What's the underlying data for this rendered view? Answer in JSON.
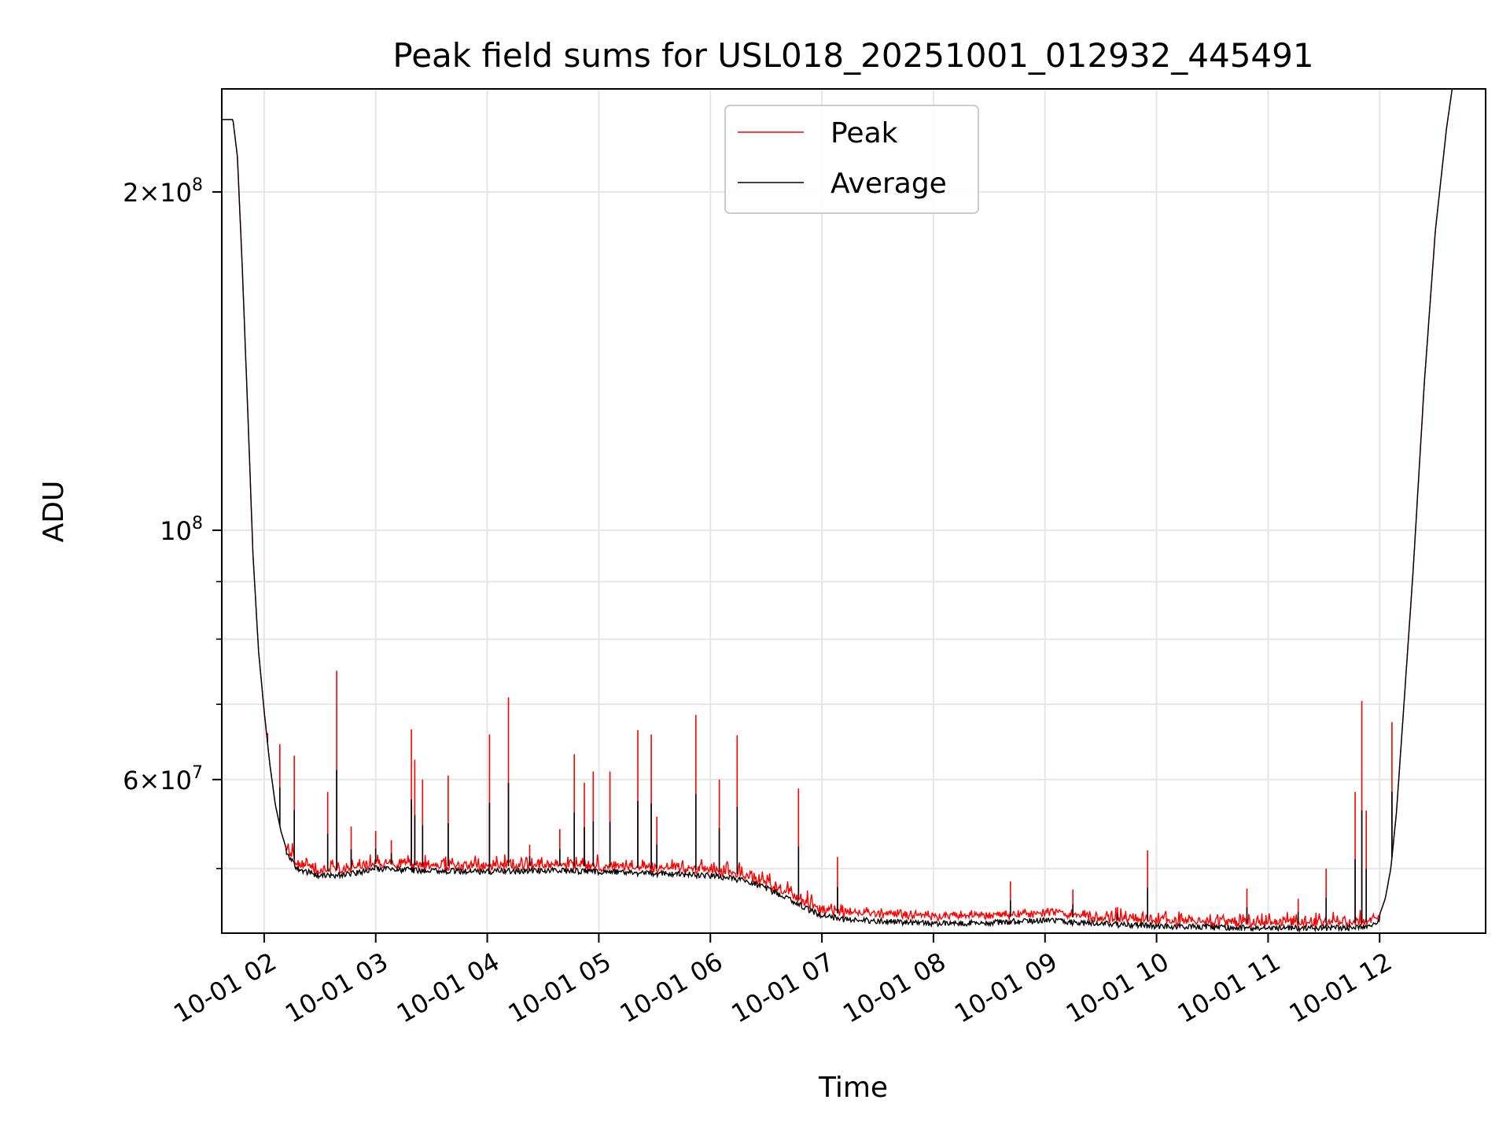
{
  "chart_data": {
    "type": "line",
    "title": "Peak field sums for USL018_20251001_012932_445491",
    "xlabel": "Time",
    "ylabel": "ADU",
    "yscale": "log",
    "ylim": [
      43800000,
      247000000
    ],
    "xlim": [
      1.62,
      12.95
    ],
    "grid": true,
    "legend_position": "top-center",
    "x_ticks": [
      {
        "value": 2,
        "label": "10-01 02"
      },
      {
        "value": 3,
        "label": "10-01 03"
      },
      {
        "value": 4,
        "label": "10-01 04"
      },
      {
        "value": 5,
        "label": "10-01 05"
      },
      {
        "value": 6,
        "label": "10-01 06"
      },
      {
        "value": 7,
        "label": "10-01 07"
      },
      {
        "value": 8,
        "label": "10-01 08"
      },
      {
        "value": 9,
        "label": "10-01 09"
      },
      {
        "value": 10,
        "label": "10-01 10"
      },
      {
        "value": 11,
        "label": "10-01 11"
      },
      {
        "value": 12,
        "label": "10-01 12"
      }
    ],
    "y_major_ticks": [
      {
        "value": 60000000,
        "mant": "6",
        "exp": "7"
      },
      {
        "value": 100000000,
        "mant": "",
        "exp": "8"
      },
      {
        "value": 200000000,
        "mant": "2",
        "exp": "8"
      }
    ],
    "y_minor_ticks": [
      50000000,
      70000000,
      80000000,
      90000000,
      300000000
    ],
    "series": [
      {
        "name": "Peak",
        "color": "#ff0000",
        "width": 1.2
      },
      {
        "name": "Average",
        "color": "#000000",
        "width": 1.2
      }
    ],
    "baseline": [
      [
        1.62,
        232000000
      ],
      [
        1.72,
        232000000
      ],
      [
        1.76,
        215000000
      ],
      [
        1.8,
        175000000
      ],
      [
        1.85,
        130000000
      ],
      [
        1.9,
        95000000
      ],
      [
        1.95,
        78000000
      ],
      [
        2.0,
        69000000
      ],
      [
        2.05,
        62000000
      ],
      [
        2.1,
        57000000
      ],
      [
        2.15,
        54000000
      ],
      [
        2.2,
        52000000
      ],
      [
        2.3,
        50500000
      ],
      [
        2.5,
        49700000
      ],
      [
        2.8,
        50000000
      ],
      [
        3.0,
        50500000
      ],
      [
        3.4,
        50300000
      ],
      [
        4.0,
        50200000
      ],
      [
        4.5,
        50300000
      ],
      [
        5.0,
        50200000
      ],
      [
        5.5,
        50000000
      ],
      [
        6.0,
        49800000
      ],
      [
        6.3,
        49300000
      ],
      [
        6.5,
        48500000
      ],
      [
        6.7,
        47500000
      ],
      [
        6.9,
        46300000
      ],
      [
        7.0,
        45900000
      ],
      [
        7.2,
        45500000
      ],
      [
        7.6,
        45300000
      ],
      [
        8.0,
        45100000
      ],
      [
        8.5,
        45200000
      ],
      [
        9.0,
        45400000
      ],
      [
        9.3,
        45200000
      ],
      [
        9.6,
        45050000
      ],
      [
        10.0,
        44900000
      ],
      [
        10.4,
        44800000
      ],
      [
        10.8,
        44700000
      ],
      [
        11.2,
        44700000
      ],
      [
        11.6,
        44700000
      ],
      [
        11.9,
        44800000
      ],
      [
        12.0,
        45500000
      ],
      [
        12.05,
        47000000
      ],
      [
        12.1,
        50000000
      ],
      [
        12.15,
        56000000
      ],
      [
        12.2,
        66000000
      ],
      [
        12.3,
        92000000
      ],
      [
        12.4,
        135000000
      ],
      [
        12.5,
        185000000
      ],
      [
        12.6,
        228000000
      ],
      [
        12.65,
        247000000
      ]
    ],
    "peak_spikes": [
      [
        2.03,
        66000000
      ],
      [
        2.14,
        64500000
      ],
      [
        2.27,
        63000000
      ],
      [
        2.57,
        58500000
      ],
      [
        2.65,
        75000000
      ],
      [
        2.78,
        54500000
      ],
      [
        3.0,
        54000000
      ],
      [
        3.14,
        53000000
      ],
      [
        3.32,
        66500000
      ],
      [
        3.35,
        62500000
      ],
      [
        3.42,
        60000000
      ],
      [
        3.65,
        60500000
      ],
      [
        4.02,
        65800000
      ],
      [
        4.19,
        71000000
      ],
      [
        4.38,
        52500000
      ],
      [
        4.65,
        54200000
      ],
      [
        4.78,
        63200000
      ],
      [
        4.87,
        59600000
      ],
      [
        4.95,
        61000000
      ],
      [
        5.1,
        61000000
      ],
      [
        5.35,
        66400000
      ],
      [
        5.47,
        65800000
      ],
      [
        5.52,
        55600000
      ],
      [
        5.87,
        68500000
      ],
      [
        6.08,
        60000000
      ],
      [
        6.24,
        65700000
      ],
      [
        6.79,
        58900000
      ],
      [
        7.14,
        51200000
      ],
      [
        8.69,
        48700000
      ],
      [
        9.25,
        47900000
      ],
      [
        9.65,
        46200000
      ],
      [
        9.92,
        51900000
      ],
      [
        10.81,
        48000000
      ],
      [
        11.27,
        47000000
      ],
      [
        11.52,
        50000000
      ],
      [
        11.78,
        58500000
      ],
      [
        11.84,
        70500000
      ],
      [
        11.88,
        56300000
      ],
      [
        12.11,
        67500000
      ]
    ]
  },
  "legend": {
    "peak_label": "Peak",
    "avg_label": "Average"
  }
}
